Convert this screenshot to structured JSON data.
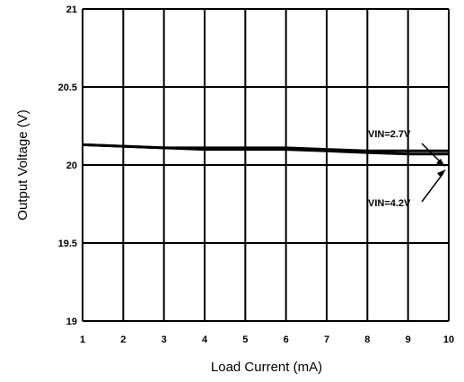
{
  "chart_data": {
    "type": "line",
    "title": "",
    "xlabel": "Load Current (mA)",
    "ylabel": "Output Voltage (V)",
    "xlim": [
      1,
      10
    ],
    "ylim": [
      19,
      21
    ],
    "x_ticks": [
      "1",
      "2",
      "3",
      "4",
      "5",
      "6",
      "7",
      "8",
      "9",
      "10"
    ],
    "y_ticks": [
      "19",
      "19.5",
      "20",
      "20.5",
      "21"
    ],
    "grid": true,
    "series": [
      {
        "name": "VIN=2.7V",
        "x": [
          1,
          2,
          3,
          4,
          5,
          6,
          7,
          8,
          9,
          10
        ],
        "y": [
          20.13,
          20.12,
          20.11,
          20.11,
          20.11,
          20.11,
          20.1,
          20.09,
          20.09,
          20.09
        ],
        "color": "#000000"
      },
      {
        "name": "VIN=4.2V",
        "x": [
          1,
          2,
          3,
          4,
          5,
          6,
          7,
          8,
          9,
          10
        ],
        "y": [
          20.13,
          20.12,
          20.11,
          20.1,
          20.1,
          20.1,
          20.09,
          20.08,
          20.07,
          20.07
        ],
        "color": "#000000"
      }
    ],
    "annotations": [
      {
        "text": "VIN=2.7V",
        "points_to_series": 0
      },
      {
        "text": "VIN=4.2V",
        "points_to_series": 1
      }
    ]
  }
}
